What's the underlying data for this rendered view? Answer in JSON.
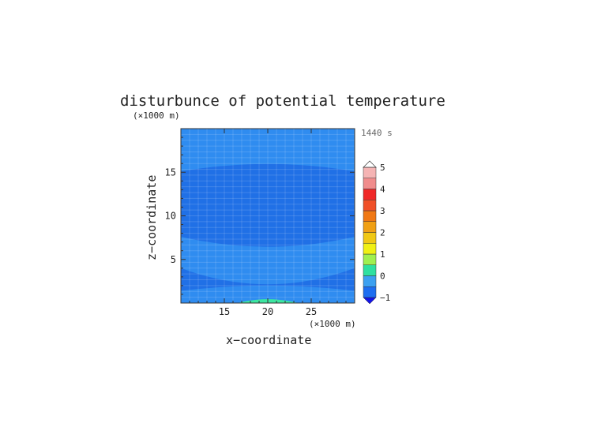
{
  "chart_data": {
    "type": "heatmap",
    "title": "disturbunce of potential temperature",
    "time_label": "1440 s",
    "xlabel": "x−coordinate",
    "ylabel": "z−coordinate",
    "x_unit": "(×1000 m)",
    "y_unit": "(×1000 m)",
    "xlim": [
      10,
      30
    ],
    "ylim": [
      0,
      20
    ],
    "x_ticks": [
      "15",
      "20",
      "25"
    ],
    "y_ticks": [
      "5",
      "10",
      "15"
    ],
    "x_tick_values": [
      15,
      20,
      25
    ],
    "y_tick_values": [
      5,
      10,
      15
    ],
    "contour_levels": [
      -1,
      -0.5,
      0,
      0.5,
      1,
      1.5,
      2,
      2.5,
      3,
      3.5,
      4,
      4.5,
      5
    ],
    "colorbar_labels": [
      "−1",
      "0",
      "1",
      "2",
      "3",
      "4",
      "5"
    ],
    "colorbar_label_values": [
      -1,
      0,
      1,
      2,
      3,
      4,
      5
    ],
    "colorbar_colors": [
      "#1414e6",
      "#1e6ef0",
      "#3ca0f0",
      "#2fe0a0",
      "#a0f050",
      "#f0f014",
      "#f0c814",
      "#f0a014",
      "#f07814",
      "#f05028",
      "#f02828",
      "#f08c8c",
      "#f5b4b4"
    ],
    "colors": {
      "background_field": "#2f8cf0",
      "negative_band": "#2070e6",
      "positive_anomaly": "#3ce6a0"
    },
    "regions": [
      {
        "name": "background",
        "value_range": [
          0,
          0.5
        ]
      },
      {
        "name": "upper-negative-band",
        "value_range": [
          -0.5,
          0
        ]
      },
      {
        "name": "lower-negative-band",
        "value_range": [
          -0.5,
          0
        ]
      },
      {
        "name": "surface-warm-anomaly",
        "value_range": [
          1,
          1.5
        ],
        "x": [
          16.5,
          23.5
        ],
        "z": [
          0,
          0.4
        ]
      }
    ]
  }
}
